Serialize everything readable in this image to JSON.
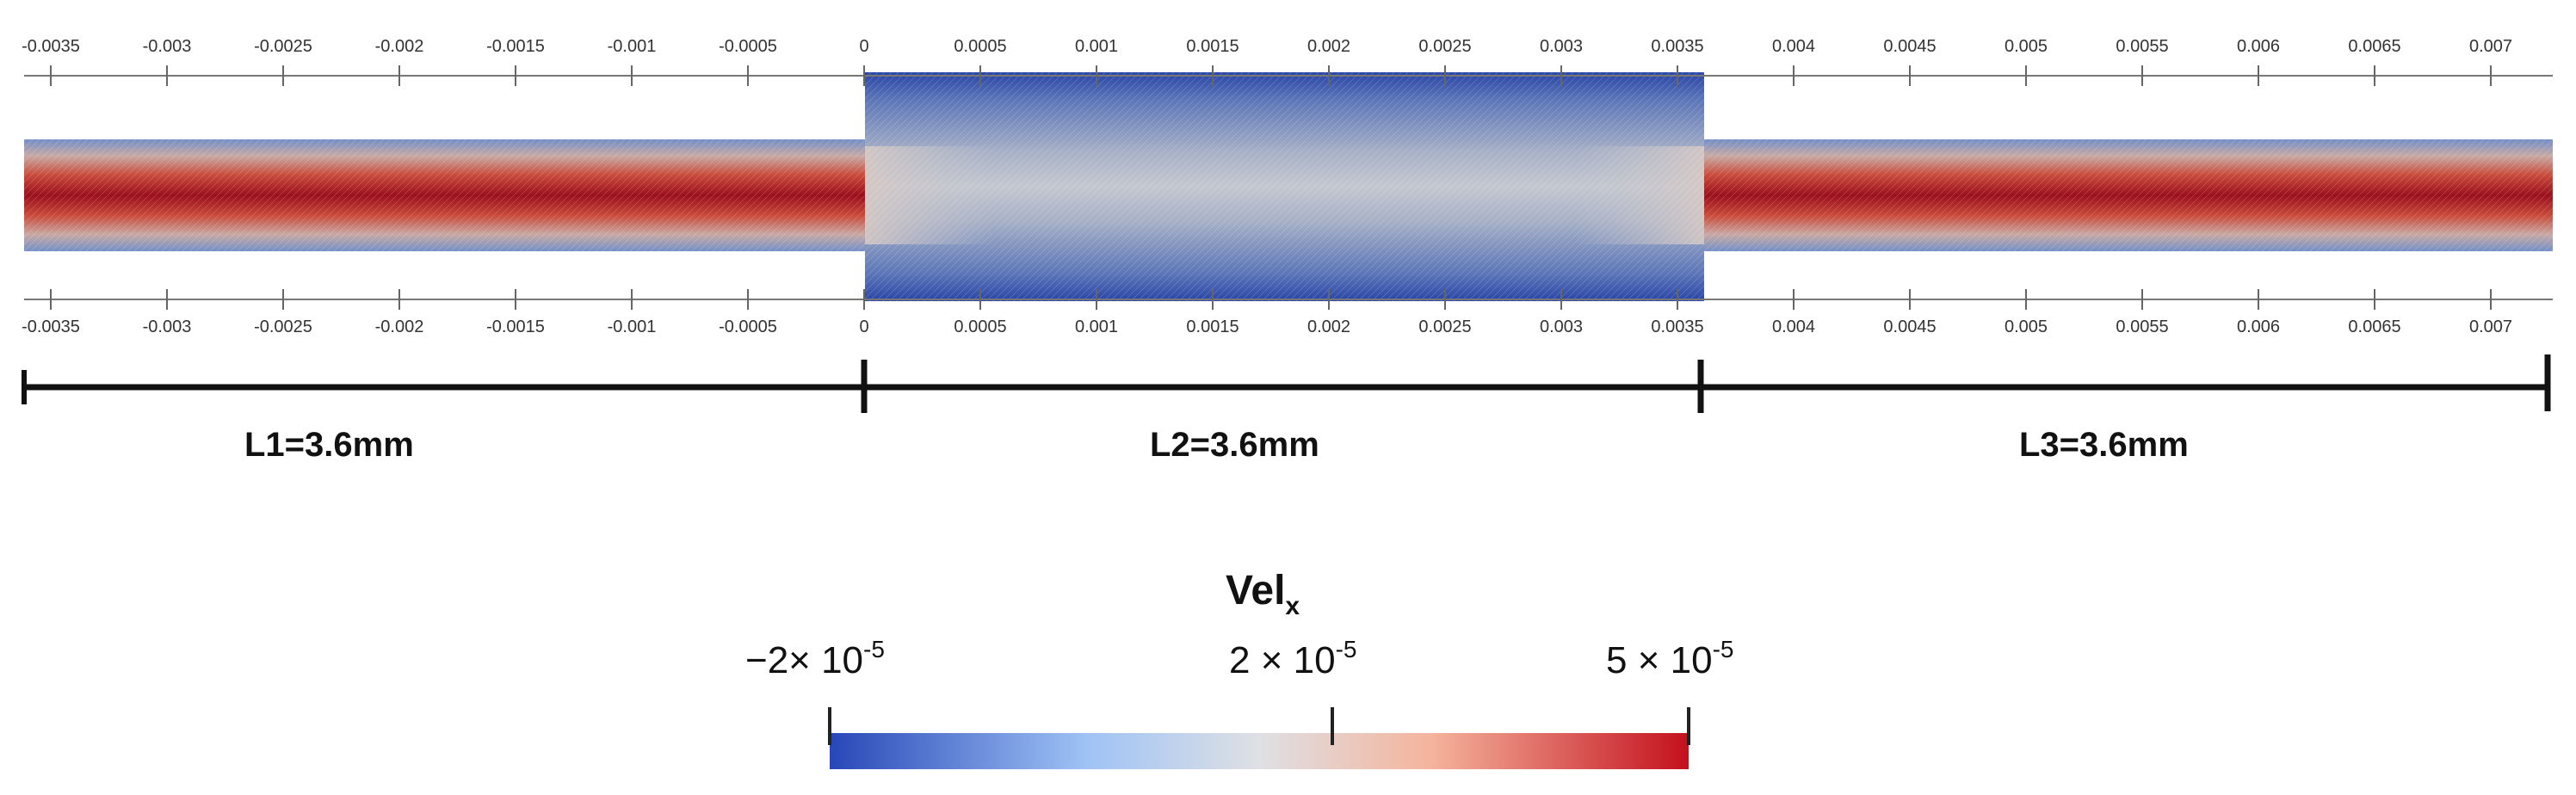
{
  "axis": {
    "ticks": [
      "-0.0035",
      "-0.003",
      "-0.0025",
      "-0.002",
      "-0.0015",
      "-0.001",
      "-0.0005",
      "0",
      "0.0005",
      "0.001",
      "0.0015",
      "0.002",
      "0.0025",
      "0.003",
      "0.0035",
      "0.004",
      "0.0045",
      "0.005",
      "0.0055",
      "0.006",
      "0.0065",
      "0.007"
    ]
  },
  "segments": [
    {
      "label": "L1=3.6mm",
      "length_mm": 3.6
    },
    {
      "label": "L2=3.6mm",
      "length_mm": 3.6
    },
    {
      "label": "L3=3.6mm",
      "length_mm": 3.6
    }
  ],
  "colorbar": {
    "title": "Vel",
    "subscript": "x",
    "min_label": "−2× 10",
    "min_exp": "-5",
    "mid_label": "2 × 10",
    "mid_exp": "-5",
    "max_label": "5 × 10",
    "max_exp": "-5",
    "colors": {
      "low": "#2847b8",
      "mid": "#d8dde8",
      "high": "#c4101e"
    }
  },
  "field_colors": {
    "wall": "#5f7fc0",
    "core": "#a81421",
    "chamber": "#7f95bd",
    "chamber_edge": "#2a45a6"
  }
}
